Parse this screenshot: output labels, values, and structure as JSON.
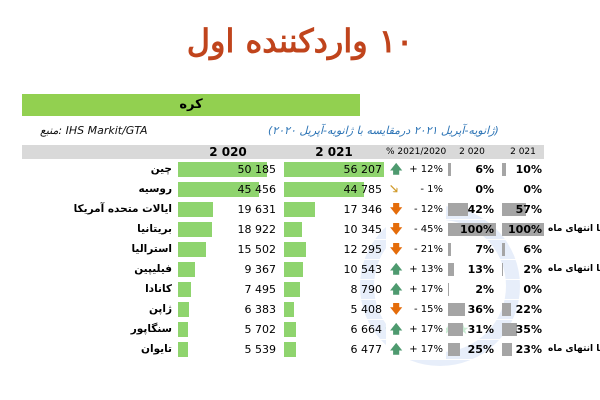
{
  "title": "۱۰ واردکننده اول",
  "country": "کره",
  "source": "منبع: IHS Markit/GTA",
  "subtitle": "(ژانویه-آپریل ۲۰۲۱ درمقایسه با ژانویه-آپریل ۲۰۲۰)",
  "headers": {
    "y2020": "2 020",
    "y2021": "2 021",
    "change": "% 2021/2020",
    "share2020": "2 020",
    "share2021": "2 021"
  },
  "colors": {
    "title": "#c0441c",
    "country_bar": "#92d050",
    "value_bar": "#8fd46e",
    "share_bar": "#a5a5a5",
    "up": "#4e9a6f",
    "down": "#e46c0a"
  },
  "rows": [
    {
      "name": "چین",
      "v2020": "50 185",
      "v2021": "56 207",
      "change": "+ 12%",
      "trend": "up",
      "s2020": "6%",
      "s2021": "10%",
      "f2020": 0.89,
      "f2021": 1.0,
      "sf2020": 0.06,
      "sf2021": 0.1,
      "note": ""
    },
    {
      "name": "روسیه",
      "v2020": "45 456",
      "v2021": "44 785",
      "change": "- 1%",
      "trend": "flat-down",
      "s2020": "0%",
      "s2021": "0%",
      "f2020": 0.81,
      "f2021": 0.8,
      "sf2020": 0,
      "sf2021": 0,
      "note": ""
    },
    {
      "name": "ایالات متحده آمریکا",
      "v2020": "19 631",
      "v2021": "17 346",
      "change": "- 12%",
      "trend": "down",
      "s2020": "42%",
      "s2021": "57%",
      "f2020": 0.35,
      "f2021": 0.31,
      "sf2020": 0.42,
      "sf2021": 0.57,
      "note": ""
    },
    {
      "name": "بریتانیا",
      "v2020": "18 922",
      "v2021": "10 345",
      "change": "- 45%",
      "trend": "down",
      "s2020": "100%",
      "s2021": "100%",
      "f2020": 0.34,
      "f2021": 0.18,
      "sf2020": 1.0,
      "sf2021": 1.0,
      "note": "تا انتهای ماه"
    },
    {
      "name": "استرالیا",
      "v2020": "15 502",
      "v2021": "12 295",
      "change": "- 21%",
      "trend": "down",
      "s2020": "7%",
      "s2021": "6%",
      "f2020": 0.28,
      "f2021": 0.22,
      "sf2020": 0.07,
      "sf2021": 0.06,
      "note": ""
    },
    {
      "name": "فیلیپین",
      "v2020": "9 367",
      "v2021": "10 543",
      "change": "+ 13%",
      "trend": "up",
      "s2020": "13%",
      "s2021": "2%",
      "f2020": 0.17,
      "f2021": 0.19,
      "sf2020": 0.13,
      "sf2021": 0.02,
      "note": "تا انتهای ماه"
    },
    {
      "name": "کانادا",
      "v2020": "7 495",
      "v2021": "8 790",
      "change": "+ 17%",
      "trend": "up",
      "s2020": "2%",
      "s2021": "0%",
      "f2020": 0.13,
      "f2021": 0.16,
      "sf2020": 0.02,
      "sf2021": 0,
      "note": ""
    },
    {
      "name": "ژاپن",
      "v2020": "6 383",
      "v2021": "5 408",
      "change": "- 15%",
      "trend": "down",
      "s2020": "36%",
      "s2021": "22%",
      "f2020": 0.11,
      "f2021": 0.1,
      "sf2020": 0.36,
      "sf2021": 0.22,
      "note": ""
    },
    {
      "name": "سنگاپور",
      "v2020": "5 702",
      "v2021": "6 664",
      "change": "+ 17%",
      "trend": "up",
      "s2020": "31%",
      "s2021": "35%",
      "f2020": 0.1,
      "f2021": 0.12,
      "sf2020": 0.31,
      "sf2021": 0.35,
      "note": ""
    },
    {
      "name": "تایوان",
      "v2020": "5 539",
      "v2021": "6 477",
      "change": "+ 17%",
      "trend": "up",
      "s2020": "25%",
      "s2021": "23%",
      "f2020": 0.1,
      "f2021": 0.12,
      "sf2020": 0.25,
      "sf2021": 0.23,
      "note": "تا انتهای ماه"
    }
  ]
}
